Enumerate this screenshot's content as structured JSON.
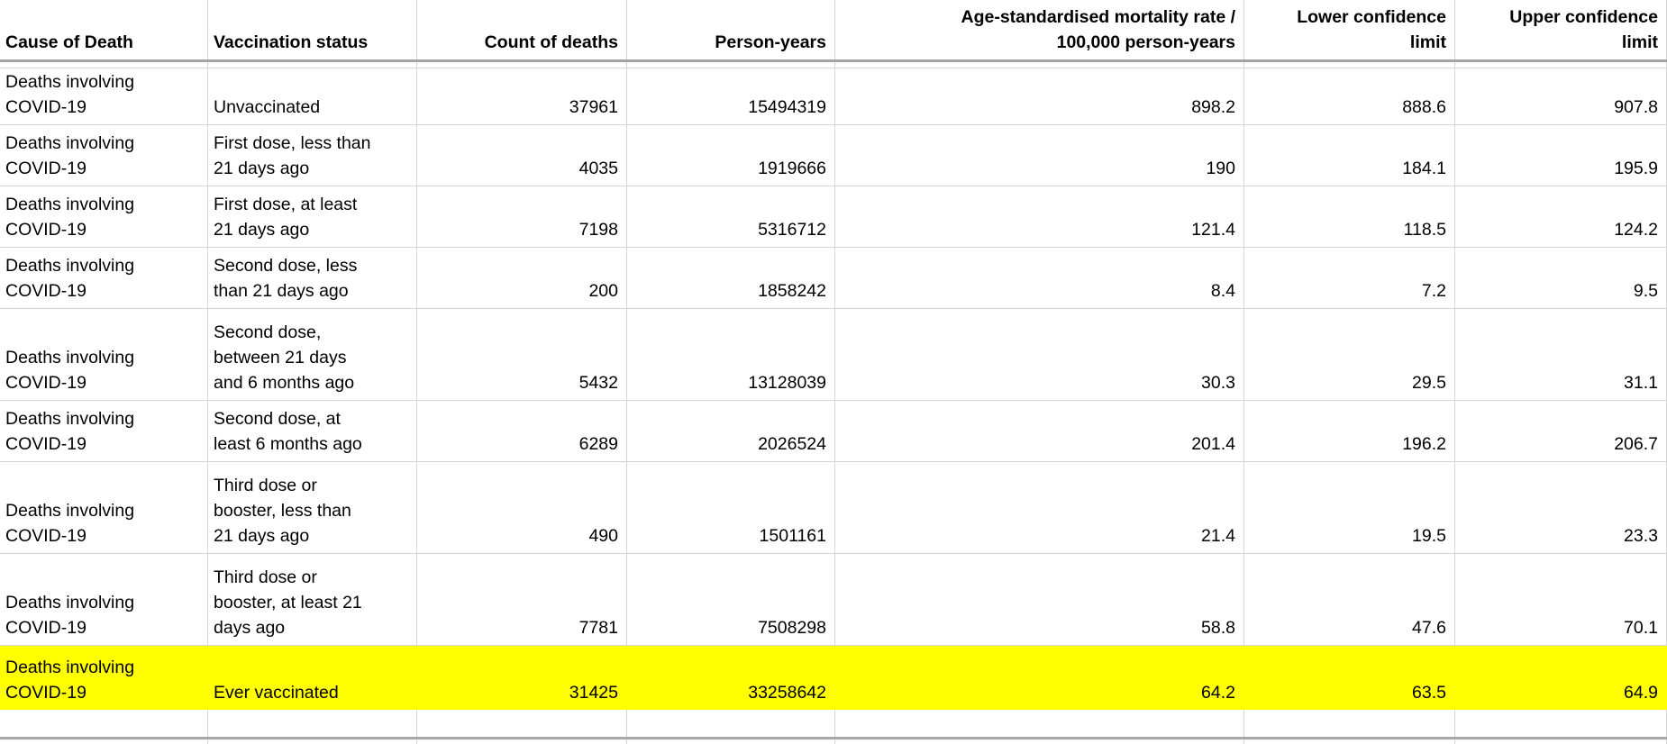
{
  "table": {
    "columns": [
      {
        "label": "Cause of Death",
        "align": "left"
      },
      {
        "label": "Vaccination status",
        "align": "left"
      },
      {
        "label": "Count of deaths",
        "align": "right"
      },
      {
        "label": "Person-years",
        "align": "right"
      },
      {
        "label": "Age-standardised mortality rate /\n100,000 person-years",
        "align": "right"
      },
      {
        "label": "Lower confidence\nlimit",
        "align": "right"
      },
      {
        "label": "Upper confidence\nlimit",
        "align": "right"
      }
    ],
    "rows": [
      {
        "cause": "Deaths involving\nCOVID-19",
        "status": "Unvaccinated",
        "count": "37961",
        "person_years": "15494319",
        "asmr": "898.2",
        "lower_cl": "888.6",
        "upper_cl": "907.8",
        "highlight": false
      },
      {
        "cause": "Deaths involving\nCOVID-19",
        "status": "First dose, less than\n21 days ago",
        "count": "4035",
        "person_years": "1919666",
        "asmr": "190",
        "lower_cl": "184.1",
        "upper_cl": "195.9",
        "highlight": false
      },
      {
        "cause": "Deaths involving\nCOVID-19",
        "status": "First dose, at least\n21 days ago",
        "count": "7198",
        "person_years": "5316712",
        "asmr": "121.4",
        "lower_cl": "118.5",
        "upper_cl": "124.2",
        "highlight": false
      },
      {
        "cause": "Deaths involving\nCOVID-19",
        "status": "Second dose, less\nthan 21 days ago",
        "count": "200",
        "person_years": "1858242",
        "asmr": "8.4",
        "lower_cl": "7.2",
        "upper_cl": "9.5",
        "highlight": false
      },
      {
        "cause": "Deaths involving\nCOVID-19",
        "status": "Second dose,\nbetween 21 days\nand 6 months ago",
        "count": "5432",
        "person_years": "13128039",
        "asmr": "30.3",
        "lower_cl": "29.5",
        "upper_cl": "31.1",
        "highlight": false
      },
      {
        "cause": "Deaths involving\nCOVID-19",
        "status": "Second dose, at\nleast 6 months ago",
        "count": "6289",
        "person_years": "2026524",
        "asmr": "201.4",
        "lower_cl": "196.2",
        "upper_cl": "206.7",
        "highlight": false
      },
      {
        "cause": "Deaths involving\nCOVID-19",
        "status": "Third dose or\nbooster, less than\n21 days ago",
        "count": "490",
        "person_years": "1501161",
        "asmr": "21.4",
        "lower_cl": "19.5",
        "upper_cl": "23.3",
        "highlight": false
      },
      {
        "cause": "Deaths involving\nCOVID-19",
        "status": "Third dose or\nbooster, at least 21\ndays ago",
        "count": "7781",
        "person_years": "7508298",
        "asmr": "58.8",
        "lower_cl": "47.6",
        "upper_cl": "70.1",
        "highlight": false
      },
      {
        "cause": "Deaths involving\nCOVID-19",
        "status": "Ever vaccinated",
        "count": "31425",
        "person_years": "33258642",
        "asmr": "64.2",
        "lower_cl": "63.5",
        "upper_cl": "64.9",
        "highlight": true
      }
    ],
    "highlight_color": "#ffff00",
    "gridline_color": "#d4d4d4",
    "header_border_color": "#a3a3a3"
  }
}
